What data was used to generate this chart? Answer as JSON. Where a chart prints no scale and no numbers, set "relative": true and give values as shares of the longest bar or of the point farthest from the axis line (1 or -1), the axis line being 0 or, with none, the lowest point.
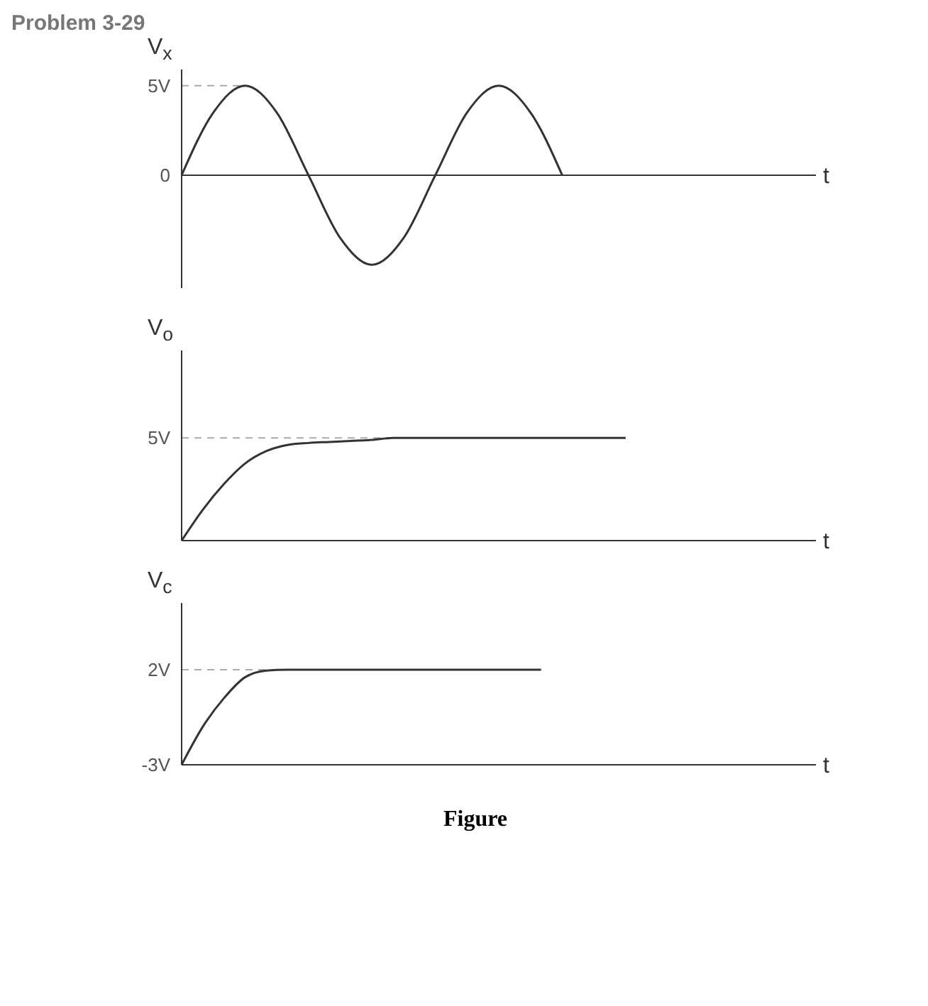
{
  "chart_data": [
    {
      "type": "line",
      "title": "Problem 3-29",
      "ylabel": "V$_{x}$",
      "xlabel": "t",
      "categories": [
        null,
        null,
        null,
        null,
        null,
        null,
        null,
        null,
        null,
        null,
        null,
        null,
        null,
        null,
        null,
        null,
        null,
        null,
        null,
        null,
        null
      ],
      "series": [
        {
          "color": "#333333",
          "values": [
            0,
            3.5,
            5,
            3.5,
            0,
            -3.5,
            -5,
            -3.5,
            0,
            3.5,
            5,
            3.5,
            0,
            null,
            null,
            null,
            null,
            null,
            null,
            null,
            null
          ]
        }
      ],
      "ylim": [
        -6.3,
        5.9
      ],
      "yticks": [
        {
          "value": 5,
          "label": "5V"
        },
        {
          "value": 0,
          "label": "0"
        }
      ],
      "ref_lines": [
        {
          "axis": "y",
          "value": 5,
          "label": null,
          "color": "#aaaaaa",
          "line_style": "dashed"
        }
      ]
    },
    {
      "type": "line",
      "ylabel": "V$_{o}$",
      "xlabel": "t",
      "relative": true,
      "categories": [
        null,
        null,
        null,
        null,
        null,
        null,
        null,
        null,
        null,
        null,
        null,
        null,
        null,
        null,
        null,
        null,
        null,
        null,
        null,
        null,
        null,
        null,
        null,
        null,
        null,
        null,
        null,
        null,
        null,
        null,
        null
      ],
      "series": [
        {
          "color": "#333333",
          "values": [
            0,
            0.3,
            0.55,
            0.75,
            0.87,
            0.93,
            0.95,
            0.96,
            0.97,
            0.98,
            1,
            1,
            1,
            1,
            1,
            1,
            1,
            1,
            1,
            1,
            1,
            1,
            null,
            null,
            null,
            null,
            null,
            null,
            null,
            null,
            null
          ]
        }
      ],
      "ref_lines": [
        {
          "axis": "y",
          "value": 1,
          "label": "5V",
          "color": "#aaaaaa",
          "line_style": "dashed"
        }
      ]
    },
    {
      "type": "line",
      "ylabel": "V$_{c}$",
      "xlabel": "t",
      "categories": [
        null,
        null,
        null,
        null,
        null,
        null,
        null,
        null,
        null,
        null,
        null,
        null,
        null,
        null,
        null,
        null,
        null,
        null,
        null,
        null,
        null,
        null,
        null,
        null,
        null,
        null,
        null,
        null,
        null,
        null,
        null
      ],
      "series": [
        {
          "color": "#333333",
          "values": [
            -3,
            -1,
            0.5,
            1.6,
            1.95,
            2,
            2,
            2,
            2,
            2,
            2,
            2,
            2,
            2,
            2,
            2,
            2,
            2,
            null,
            null,
            null,
            null,
            null,
            null,
            null,
            null,
            null,
            null,
            null,
            null,
            null
          ]
        }
      ],
      "ylim": [
        -3,
        5.5
      ],
      "yticks": [
        {
          "value": 2,
          "label": "2V"
        },
        {
          "value": -3,
          "label": "-3V"
        }
      ],
      "ref_lines": [
        {
          "axis": "y",
          "value": 2,
          "label": null,
          "color": "#aaaaaa",
          "line_style": "dashed"
        }
      ],
      "annotations": [
        "Figure"
      ]
    }
  ]
}
